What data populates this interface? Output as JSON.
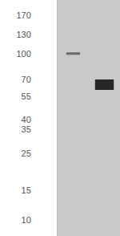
{
  "chart_data": {
    "type": "blot",
    "categories": [
      null,
      null
    ],
    "values": [
      100,
      65
    ],
    "colors": [
      "#6a6a6a",
      "#262626"
    ],
    "ylim": [
      8,
      210
    ],
    "yticks": [
      170,
      130,
      100,
      70,
      55,
      40,
      35,
      25,
      15,
      10
    ],
    "log": "y",
    "grid": false,
    "tick_labels": "y"
  }
}
